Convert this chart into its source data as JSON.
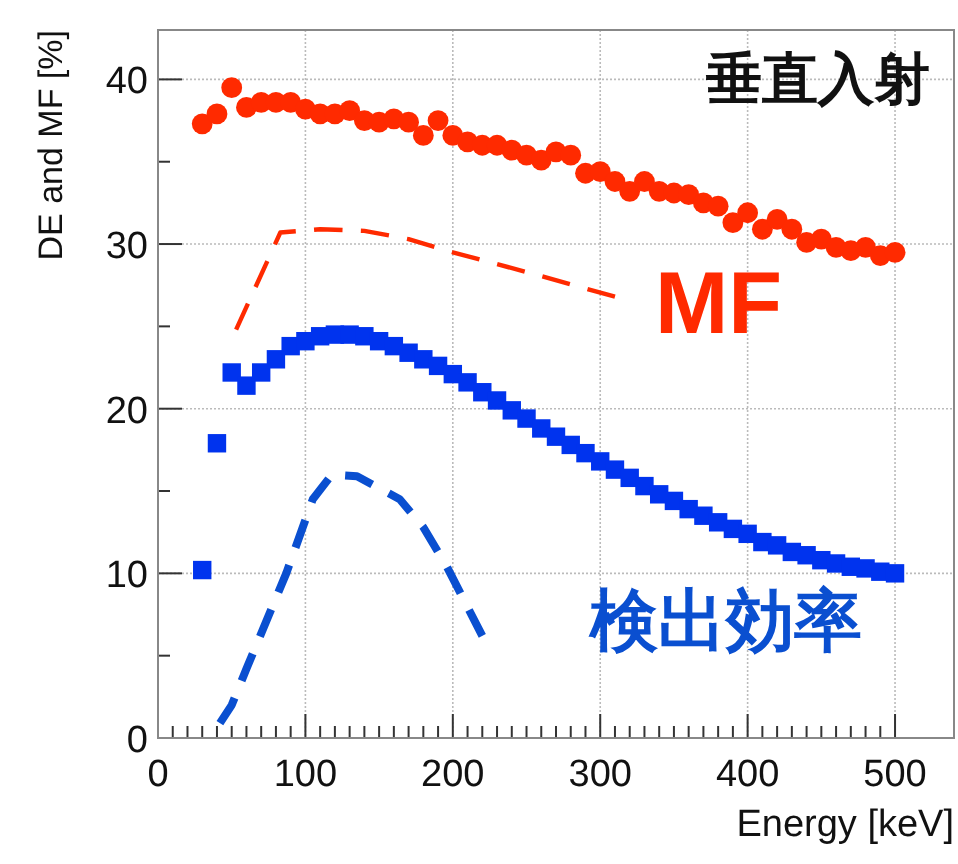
{
  "chart_data": {
    "type": "scatter",
    "xlabel": "Energy [keV]",
    "ylabel": "DE and MF [%]",
    "annotations": [
      "垂直入射"
    ],
    "xlim": [
      0,
      540
    ],
    "ylim": [
      0,
      43
    ],
    "xticks": [
      0,
      100,
      200,
      300,
      400,
      500
    ],
    "yticks": [
      0,
      10,
      20,
      30,
      40
    ],
    "grid": true,
    "series": [
      {
        "marker": "circle",
        "color": "#ff2a00",
        "x": [
          30,
          40,
          50,
          60,
          70,
          80,
          90,
          100,
          110,
          120,
          130,
          140,
          150,
          160,
          170,
          180,
          190,
          200,
          210,
          220,
          230,
          240,
          250,
          260,
          270,
          280,
          290,
          300,
          310,
          320,
          330,
          340,
          350,
          360,
          370,
          380,
          390,
          400,
          410,
          420,
          430,
          440,
          450,
          460,
          470,
          480,
          490,
          500
        ],
        "values": [
          37.3,
          37.9,
          39.5,
          38.3,
          38.6,
          38.6,
          38.6,
          38.2,
          37.9,
          37.9,
          38.1,
          37.5,
          37.4,
          37.6,
          37.4,
          36.6,
          37.5,
          36.6,
          36.2,
          36.0,
          36.0,
          35.7,
          35.4,
          35.1,
          35.6,
          35.4,
          34.3,
          34.4,
          33.8,
          33.2,
          33.8,
          33.2,
          33.1,
          33.0,
          32.5,
          32.3,
          31.3,
          31.9,
          30.9,
          31.5,
          30.9,
          30.1,
          30.3,
          29.8,
          29.6,
          29.8,
          29.3,
          29.5
        ]
      },
      {
        "marker": "square",
        "color": "#0033ee",
        "x": [
          30,
          40,
          50,
          60,
          70,
          80,
          90,
          100,
          110,
          120,
          130,
          140,
          150,
          160,
          170,
          180,
          190,
          200,
          210,
          220,
          230,
          240,
          250,
          260,
          270,
          280,
          290,
          300,
          310,
          320,
          330,
          340,
          350,
          360,
          370,
          380,
          390,
          400,
          410,
          420,
          430,
          440,
          450,
          460,
          470,
          480,
          490,
          500
        ],
        "values": [
          10.2,
          17.9,
          22.2,
          21.4,
          22.2,
          23.0,
          23.8,
          24.1,
          24.4,
          24.5,
          24.5,
          24.4,
          24.1,
          23.8,
          23.4,
          23.0,
          22.6,
          22.1,
          21.6,
          21.0,
          20.5,
          19.9,
          19.4,
          18.8,
          18.3,
          17.8,
          17.3,
          16.8,
          16.3,
          15.8,
          15.3,
          14.8,
          14.4,
          13.9,
          13.5,
          13.1,
          12.7,
          12.4,
          11.9,
          11.7,
          11.3,
          11.1,
          10.8,
          10.6,
          10.4,
          10.3,
          10.1,
          10.0
        ]
      },
      {
        "type": "line",
        "name": "MF",
        "line_style": "dashed",
        "color": "#ff2a00",
        "x": [
          53,
          83,
          110,
          140,
          170,
          200,
          250,
          310
        ],
        "values": [
          24.8,
          30.7,
          30.9,
          30.8,
          30.3,
          29.5,
          28.3,
          26.8
        ]
      },
      {
        "type": "line",
        "name": "検出効率",
        "line_style": "dashed",
        "color": "#0a4fd0",
        "x": [
          42,
          50,
          60,
          87,
          105,
          118,
          135,
          164,
          180,
          196,
          220
        ],
        "values": [
          0.9,
          2.0,
          4.2,
          10.0,
          14.5,
          16.0,
          15.9,
          14.5,
          12.8,
          10.4,
          6.2
        ]
      }
    ]
  }
}
